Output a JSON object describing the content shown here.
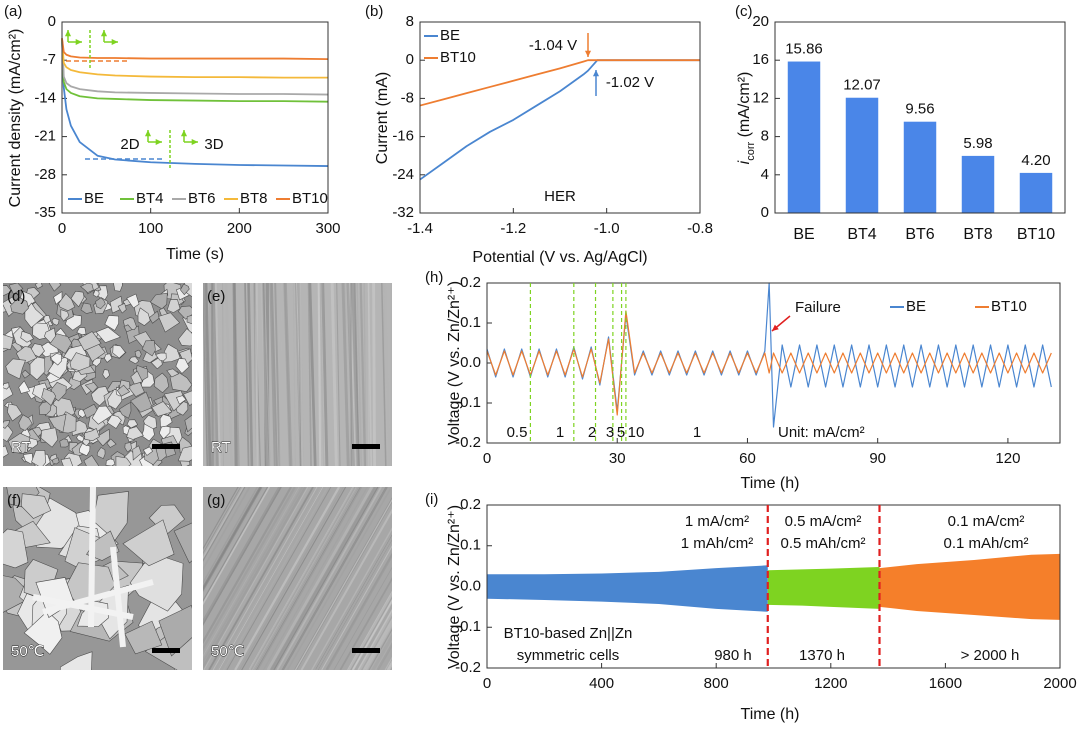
{
  "chart_data": [
    {
      "type": "line",
      "panel_label": "(a)",
      "x_label": "Time (s)",
      "y_label": "Current density (mA/cm²)",
      "x": [
        0,
        2,
        5,
        10,
        20,
        40,
        60,
        100,
        150,
        200,
        250,
        300
      ],
      "xlim": [
        0,
        300
      ],
      "xticks": [
        0,
        100,
        200,
        300
      ],
      "ylim": [
        -35,
        0
      ],
      "yticks": [
        0,
        -7,
        -14,
        -21,
        -28,
        -35
      ],
      "legend": "bottom",
      "series": [
        {
          "name": "BE",
          "color": "#4a86d0",
          "values": [
            -3,
            -12,
            -16,
            -19,
            -22,
            -24.5,
            -25.2,
            -25.7,
            -26,
            -26.2,
            -26.3,
            -26.4
          ]
        },
        {
          "name": "BT4",
          "color": "#70c13a",
          "values": [
            -3,
            -11,
            -12.3,
            -13,
            -13.6,
            -14,
            -14.1,
            -14.3,
            -14.4,
            -14.5,
            -14.5,
            -14.6
          ]
        },
        {
          "name": "BT6",
          "color": "#a9a9a9",
          "values": [
            -3,
            -10,
            -11.2,
            -11.8,
            -12.3,
            -12.7,
            -12.9,
            -13,
            -13.1,
            -13.2,
            -13.2,
            -13.3
          ]
        },
        {
          "name": "BT8",
          "color": "#f4b93a",
          "values": [
            -3,
            -7.5,
            -8.3,
            -8.8,
            -9.2,
            -9.6,
            -9.8,
            -10,
            -10.1,
            -10.1,
            -10.2,
            -10.2
          ]
        },
        {
          "name": "BT10",
          "color": "#ee7d31",
          "values": [
            -3,
            -5.5,
            -6,
            -6.3,
            -6.5,
            -6.6,
            -6.6,
            -6.7,
            -6.7,
            -6.7,
            -6.7,
            -6.8
          ]
        }
      ],
      "annotations": [
        "2D",
        "3D"
      ]
    },
    {
      "type": "line",
      "panel_label": "(b)",
      "x_label": "Potential (V vs. Ag/AgCl)",
      "y_label": "Current (mA)",
      "x": [
        -1.4,
        -1.35,
        -1.3,
        -1.25,
        -1.2,
        -1.15,
        -1.1,
        -1.05,
        -1.04,
        -1.02,
        -1.0,
        -0.9,
        -0.8
      ],
      "xlim": [
        -1.4,
        -0.8
      ],
      "xticks": [
        -1.4,
        -1.2,
        {
          "value": -1,
          "label": "-1.0"
        },
        -0.8
      ],
      "ylim": [
        -32,
        8
      ],
      "yticks": [
        -32,
        -24,
        -16,
        -8,
        0,
        8
      ],
      "legend": "upper left",
      "series": [
        {
          "name": "BE",
          "color": "#4a86d0",
          "values": [
            -25,
            -21.5,
            -18,
            -15,
            -12.5,
            -9.5,
            -6.5,
            -3,
            -2.2,
            0,
            0,
            0,
            0
          ]
        },
        {
          "name": "BT10",
          "color": "#ee7d31",
          "values": [
            -9.5,
            -8.2,
            -6.9,
            -5.6,
            -4.3,
            -3,
            -1.7,
            -0.3,
            0,
            0,
            0,
            0,
            0
          ]
        }
      ],
      "annotations": [
        "-1.04 V",
        "-1.02 V",
        "HER"
      ]
    },
    {
      "type": "bar",
      "panel_label": "(c)",
      "y_label": {
        "symbol": "i",
        "subscript": "corr",
        "unit": " (mA/cm²)"
      },
      "categories": [
        "BE",
        "BT4",
        "BT6",
        "BT8",
        "BT10"
      ],
      "values": [
        15.86,
        12.07,
        9.56,
        5.98,
        4.2
      ],
      "value_labels": [
        "15.86",
        "12.07",
        "9.56",
        "5.98",
        "4.20"
      ],
      "color": "#4a86e8",
      "ylim": [
        0,
        20
      ],
      "yticks": [
        0,
        4,
        8,
        12,
        16,
        20
      ]
    },
    {
      "type": "line",
      "panel_label": "(h)",
      "x_label": "Time (h)",
      "y_label": "Voltage (V vs. Zn/Zn²⁺)",
      "x": [
        0,
        2,
        4,
        6,
        8,
        10,
        12,
        14,
        16,
        18,
        20,
        22,
        24,
        26,
        28,
        30,
        32,
        34,
        36,
        38,
        40,
        42,
        44,
        46,
        48,
        50,
        52,
        54,
        56,
        58,
        60,
        62,
        64,
        65,
        66,
        68,
        70,
        72,
        74,
        76,
        78,
        80,
        82,
        84,
        86,
        88,
        90,
        92,
        94,
        96,
        98,
        100,
        102,
        104,
        106,
        108,
        110,
        112,
        114,
        116,
        118,
        120,
        122,
        124,
        126,
        128,
        130
      ],
      "xlim": [
        0,
        132
      ],
      "xticks": [
        0,
        30,
        60,
        90,
        120
      ],
      "ylim": [
        -0.2,
        0.2
      ],
      "yticks": [
        -0.2,
        -0.1,
        {
          "value": 0,
          "label": "0.0"
        },
        0.1,
        0.2
      ],
      "legend": "upper right",
      "series": [
        {
          "name": "BE",
          "color": "#4a86d0",
          "values": [
            0.035,
            -0.035,
            0.035,
            -0.035,
            0.035,
            -0.035,
            0.035,
            -0.035,
            0.035,
            -0.035,
            0.04,
            -0.04,
            0.04,
            -0.055,
            0.065,
            -0.12,
            0.12,
            -0.03,
            0.03,
            -0.03,
            0.03,
            -0.03,
            0.03,
            -0.03,
            0.03,
            -0.03,
            0.03,
            -0.03,
            0.03,
            -0.03,
            0.03,
            -0.03,
            0.03,
            0.2,
            -0.16,
            0.045,
            -0.06,
            0.045,
            -0.06,
            0.045,
            -0.06,
            0.045,
            -0.06,
            0.045,
            -0.06,
            0.045,
            -0.06,
            0.045,
            -0.06,
            0.045,
            -0.06,
            0.045,
            -0.06,
            0.045,
            -0.06,
            0.045,
            -0.06,
            0.045,
            -0.06,
            0.045,
            -0.06,
            0.045,
            -0.06,
            0.045,
            -0.06,
            0.045,
            -0.06
          ]
        },
        {
          "name": "BT10",
          "color": "#ee7d31",
          "values": [
            0.03,
            -0.03,
            0.03,
            -0.03,
            0.03,
            -0.03,
            0.03,
            -0.03,
            0.03,
            -0.03,
            0.035,
            -0.035,
            0.035,
            -0.05,
            0.06,
            -0.13,
            0.13,
            -0.025,
            0.025,
            -0.025,
            0.025,
            -0.025,
            0.025,
            -0.025,
            0.025,
            -0.025,
            0.025,
            -0.025,
            0.025,
            -0.025,
            0.025,
            -0.025,
            0.025,
            -0.025,
            0.025,
            -0.025,
            0.025,
            -0.025,
            0.025,
            -0.025,
            0.025,
            -0.025,
            0.025,
            -0.025,
            0.025,
            -0.025,
            0.025,
            -0.025,
            0.025,
            -0.025,
            0.025,
            -0.025,
            0.025,
            -0.025,
            0.025,
            -0.025,
            0.025,
            -0.025,
            0.025,
            -0.025,
            0.025,
            -0.025,
            0.025,
            -0.025,
            0.025,
            -0.025,
            0.025
          ]
        }
      ],
      "rate_changes": [
        10,
        20,
        25,
        29,
        31,
        32
      ],
      "rate_labels": [
        "0.5",
        "1",
        "2",
        "3",
        "5",
        "10",
        "1"
      ],
      "annotations": [
        "Failure",
        "Unit: mA/cm²"
      ]
    },
    {
      "type": "area",
      "panel_label": "(i)",
      "x_label": "Time (h)",
      "y_label": "Voltage (V vs. Zn/Zn²⁺)",
      "xlim": [
        0,
        2000
      ],
      "xticks": [
        0,
        400,
        800,
        1200,
        1600,
        2000
      ],
      "ylim": [
        -0.2,
        0.2
      ],
      "yticks": [
        -0.2,
        -0.1,
        {
          "value": 0,
          "label": "0.0"
        },
        0.1,
        0.2
      ],
      "series": [
        {
          "color": "#4a86d0",
          "x": [
            0,
            200,
            400,
            600,
            800,
            980
          ],
          "values": [
            0.03,
            0.03,
            0.032,
            0.036,
            0.045,
            0.052
          ],
          "lower": [
            -0.03,
            -0.033,
            -0.037,
            -0.043,
            -0.055,
            -0.062
          ]
        },
        {
          "color": "#7ed321",
          "x": [
            980,
            1100,
            1200,
            1370
          ],
          "values": [
            0.04,
            0.042,
            0.044,
            0.048
          ],
          "lower": [
            -0.045,
            -0.047,
            -0.05,
            -0.055
          ]
        },
        {
          "color": "#f57f2a",
          "x": [
            1370,
            1500,
            1700,
            1900,
            2000
          ],
          "values": [
            0.045,
            0.055,
            0.065,
            0.078,
            0.08
          ],
          "lower": [
            -0.05,
            -0.06,
            -0.07,
            -0.08,
            -0.082
          ]
        }
      ],
      "boundaries": [
        980,
        1370
      ],
      "annotations": [
        "1 mA/cm²",
        "1 mAh/cm²",
        "0.5 mA/cm²",
        "0.5 mAh/cm²",
        "0.1 mA/cm²",
        "0.1 mAh/cm²",
        "BT10-based Zn||Zn",
        "symmetric cells",
        "980 h",
        "1370 h",
        "> 2000 h"
      ]
    }
  ],
  "images": [
    {
      "label": "(d)",
      "caption": "RT"
    },
    {
      "label": "(e)",
      "caption": "RT"
    },
    {
      "label": "(f)",
      "caption": "50℃"
    },
    {
      "label": "(g)",
      "caption": "50℃"
    }
  ]
}
